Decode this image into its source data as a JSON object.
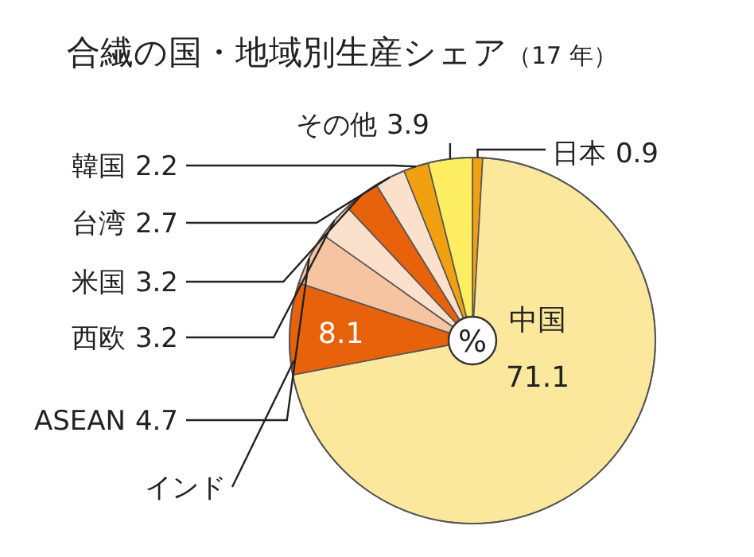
{
  "chart_data": {
    "type": "pie",
    "title": "合繊の国・地域別生産シェア",
    "subtitle": "（17 年）",
    "categories": [
      "日本",
      "中国",
      "インド",
      "ASEAN",
      "西欧",
      "米国",
      "台湾",
      "韓国",
      "その他"
    ],
    "values": [
      0.9,
      71.1,
      8.1,
      4.7,
      3.2,
      3.2,
      2.7,
      2.2,
      3.9
    ],
    "colors": [
      "#f0a010",
      "#fbe89c",
      "#e8620c",
      "#f6c4a0",
      "#fbe0cc",
      "#e8620c",
      "#fbe0cc",
      "#f0a010",
      "#fcee60"
    ],
    "data_labels": true,
    "annotations": [
      "%"
    ]
  }
}
